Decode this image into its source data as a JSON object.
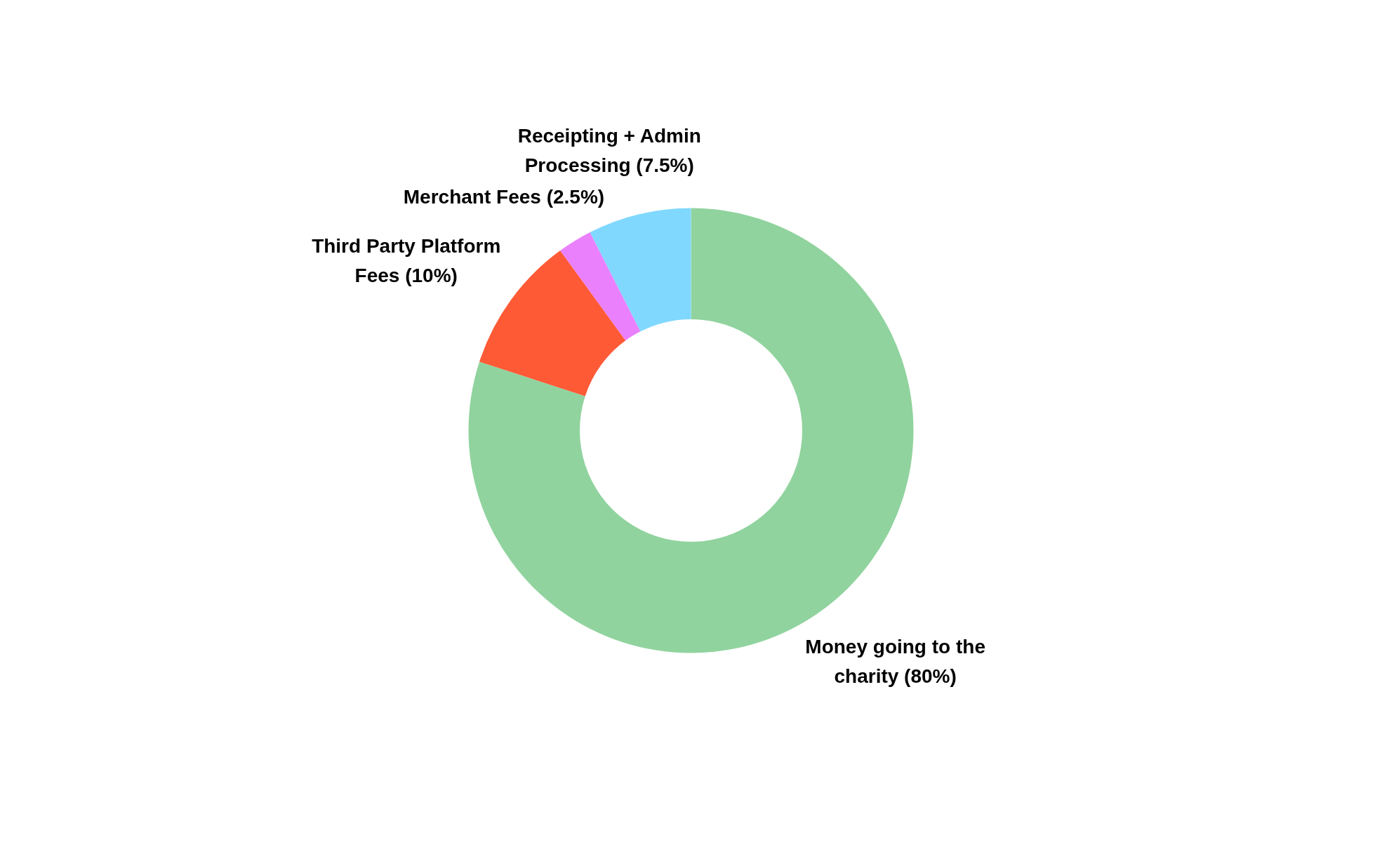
{
  "chart_data": {
    "type": "donut",
    "categories": [
      "Money going to the charity",
      "Third Party Platform Fees",
      "Merchant Fees",
      "Receipting + Admin Processing"
    ],
    "values": [
      80,
      10,
      2.5,
      7.5
    ],
    "colors": [
      "#90d39e",
      "#ff5a36",
      "#ea80fc",
      "#80d8ff"
    ],
    "value_labels": [
      "(80%)",
      "(10%)",
      "(2.5%)",
      "(7.5%)"
    ]
  }
}
